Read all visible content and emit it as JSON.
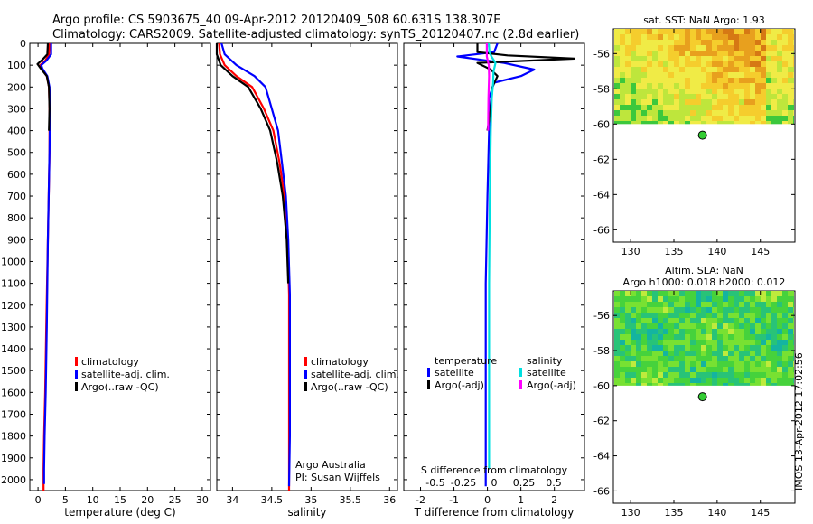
{
  "header": {
    "line1": "Argo profile: CS 5903675_40 09-Apr-2012 20120409_508 60.631S 138.307E",
    "line2": "Climatology: CARS2009. Satellite-adjusted climatology: synTS_20120407.nc (2.8d earlier)"
  },
  "colors": {
    "climatology": "#ff0000",
    "satellite": "#0000ff",
    "argo": "#000000",
    "sal_satellite": "#00e0e0",
    "sal_argo": "#ff00ff"
  },
  "chart_data": [
    {
      "type": "line",
      "name": "temperature-profile",
      "xlabel": "temperature (deg C)",
      "ylabel": "",
      "xlim": [
        -1.5,
        31.5
      ],
      "ylim": [
        2050,
        0
      ],
      "xticks": [
        0,
        5,
        10,
        15,
        20,
        25,
        30
      ],
      "yticks": [
        0,
        100,
        200,
        300,
        400,
        500,
        600,
        700,
        800,
        900,
        1000,
        1100,
        1200,
        1300,
        1400,
        1500,
        1600,
        1700,
        1800,
        1900,
        2000
      ],
      "legend": [
        "climatology",
        "satellite-adj. clim.",
        "Argo(..raw -QC)"
      ],
      "series": [
        {
          "name": "climatology",
          "color": "#ff0000",
          "x": [
            2.1,
            2.0,
            1.3,
            0.4,
            0.6,
            1.6,
            2.0,
            2.1,
            2.1,
            1.8,
            1.5,
            1.3,
            1.1,
            1.0,
            1.0,
            1.0
          ],
          "y": [
            0,
            50,
            80,
            100,
            115,
            150,
            200,
            300,
            500,
            900,
            1300,
            1600,
            1800,
            1950,
            2000,
            2050
          ]
        },
        {
          "name": "satellite-adj. clim.",
          "color": "#0000ff",
          "x": [
            2.4,
            2.4,
            1.5,
            0.6,
            0.8,
            1.7,
            2.1,
            2.2,
            2.1,
            1.8,
            1.6,
            1.4,
            1.2,
            1.1,
            1.1
          ],
          "y": [
            0,
            50,
            80,
            100,
            115,
            150,
            200,
            300,
            500,
            900,
            1300,
            1600,
            1800,
            1950,
            2020
          ]
        },
        {
          "name": "Argo(..raw -QC)",
          "color": "#000000",
          "x": [
            1.8,
            1.7,
            0.8,
            -0.1,
            0.5,
            1.6,
            2.0,
            2.1,
            2.0
          ],
          "y": [
            0,
            50,
            75,
            95,
            115,
            150,
            200,
            300,
            400
          ]
        }
      ]
    },
    {
      "type": "line",
      "name": "salinity-profile",
      "xlabel": "salinity",
      "xlim": [
        33.8,
        36.1
      ],
      "ylim": [
        2050,
        0
      ],
      "xticks": [
        34,
        34.5,
        35,
        35.5,
        36
      ],
      "legend": [
        "climatology",
        "satellite-adj. clim.",
        "Argo(..raw -QC)"
      ],
      "annotation": {
        "line1": "Argo Australia",
        "line2": "PI: Susan Wijffels"
      },
      "series": [
        {
          "name": "climatology",
          "color": "#ff0000",
          "x": [
            33.83,
            33.84,
            33.9,
            34.05,
            34.25,
            34.4,
            34.52,
            34.6,
            34.66,
            34.7,
            34.72,
            34.72,
            34.72,
            34.72
          ],
          "y": [
            0,
            50,
            100,
            150,
            200,
            300,
            400,
            550,
            700,
            900,
            1150,
            1500,
            1800,
            2050
          ]
        },
        {
          "name": "satellite-adj. clim.",
          "color": "#0000ff",
          "x": [
            33.86,
            33.9,
            34.05,
            34.28,
            34.42,
            34.5,
            34.58,
            34.63,
            34.68,
            34.71,
            34.73,
            34.73,
            34.73,
            34.72
          ],
          "y": [
            0,
            50,
            100,
            150,
            200,
            300,
            400,
            550,
            700,
            900,
            1150,
            1500,
            1800,
            2030
          ]
        },
        {
          "name": "Argo(..raw -QC)",
          "color": "#000000",
          "x": [
            33.8,
            33.8,
            33.85,
            34.0,
            34.2,
            34.36,
            34.48,
            34.57,
            34.64,
            34.69,
            34.71
          ],
          "y": [
            0,
            50,
            100,
            150,
            200,
            300,
            400,
            550,
            700,
            900,
            1100
          ]
        }
      ]
    },
    {
      "type": "line",
      "name": "difference-profile",
      "xlabel": "T difference from climatology",
      "xlabel2": "S difference from climatology",
      "xlim": [
        -2.5,
        2.9
      ],
      "ylim": [
        2050,
        0
      ],
      "xticks": [
        -2,
        -1,
        0,
        1,
        2
      ],
      "xticks2": [
        "-0.5",
        "-0.25",
        "0",
        "0.25",
        "0.5"
      ],
      "legend_temperature": {
        "title": "temperature",
        "items": [
          "satellite",
          "Argo(-adj)"
        ]
      },
      "legend_salinity": {
        "title": "salinity",
        "items": [
          "satellite",
          "Argo(-adj)"
        ]
      },
      "series": [
        {
          "name": "T satellite",
          "color": "#0000ff",
          "x": [
            0.3,
            0.2,
            -0.9,
            0.5,
            1.4,
            1.0,
            0.2,
            0.05,
            0.05,
            0.0,
            -0.05,
            -0.05,
            -0.05,
            -0.05
          ],
          "y": [
            0,
            40,
            60,
            90,
            120,
            150,
            180,
            250,
            400,
            700,
            1100,
            1500,
            1800,
            2030
          ]
        },
        {
          "name": "T Argo(-adj)",
          "color": "#000000",
          "x": [
            -0.3,
            -0.3,
            0.6,
            2.6,
            -0.3,
            0.1,
            0.3,
            0.15,
            0.1,
            0.0
          ],
          "y": [
            0,
            40,
            55,
            70,
            90,
            120,
            150,
            200,
            300,
            400
          ]
        },
        {
          "name": "S satellite",
          "color": "#00e0e0",
          "x": [
            0.04,
            0.06,
            0.12,
            0.24,
            0.18,
            0.17,
            0.13,
            0.1,
            0.07,
            0.05,
            0.05
          ],
          "y": [
            0,
            40,
            60,
            90,
            130,
            180,
            250,
            400,
            700,
            1100,
            1950
          ]
        },
        {
          "name": "S Argo(-adj)",
          "color": "#ff00ff",
          "x": [
            -0.02,
            -0.02,
            -0.02,
            0.04,
            0.05,
            0.03,
            0.02
          ],
          "y": [
            0,
            40,
            60,
            100,
            150,
            250,
            400
          ]
        }
      ]
    },
    {
      "type": "heatmap",
      "name": "sst-map",
      "title": "sat. SST: NaN Argo: 1.93",
      "xlim": [
        128,
        149
      ],
      "ylim": [
        -66.7,
        -54.6
      ],
      "xticks": [
        130,
        135,
        140,
        145
      ],
      "yticks": [
        -56,
        -58,
        -60,
        -62,
        -64,
        -66
      ],
      "data_extent": {
        "lat_min": -60,
        "lat_max": -54.6
      },
      "marker": {
        "lon": 138.307,
        "lat": -60.631
      }
    },
    {
      "type": "heatmap",
      "name": "sla-map",
      "title": "Altim. SLA: NaN",
      "subtitle": "Argo h1000: 0.018 h2000: 0.012",
      "xlim": [
        128,
        149
      ],
      "ylim": [
        -66.7,
        -54.6
      ],
      "xticks": [
        130,
        135,
        140,
        145
      ],
      "yticks": [
        -56,
        -58,
        -60,
        -62,
        -64,
        -66
      ],
      "data_extent": {
        "lat_min": -60,
        "lat_max": -54.6
      },
      "marker": {
        "lon": 138.307,
        "lat": -60.631
      }
    }
  ],
  "footer": {
    "timestamp": "IMOS 13-Apr-2012 17:02:56"
  }
}
